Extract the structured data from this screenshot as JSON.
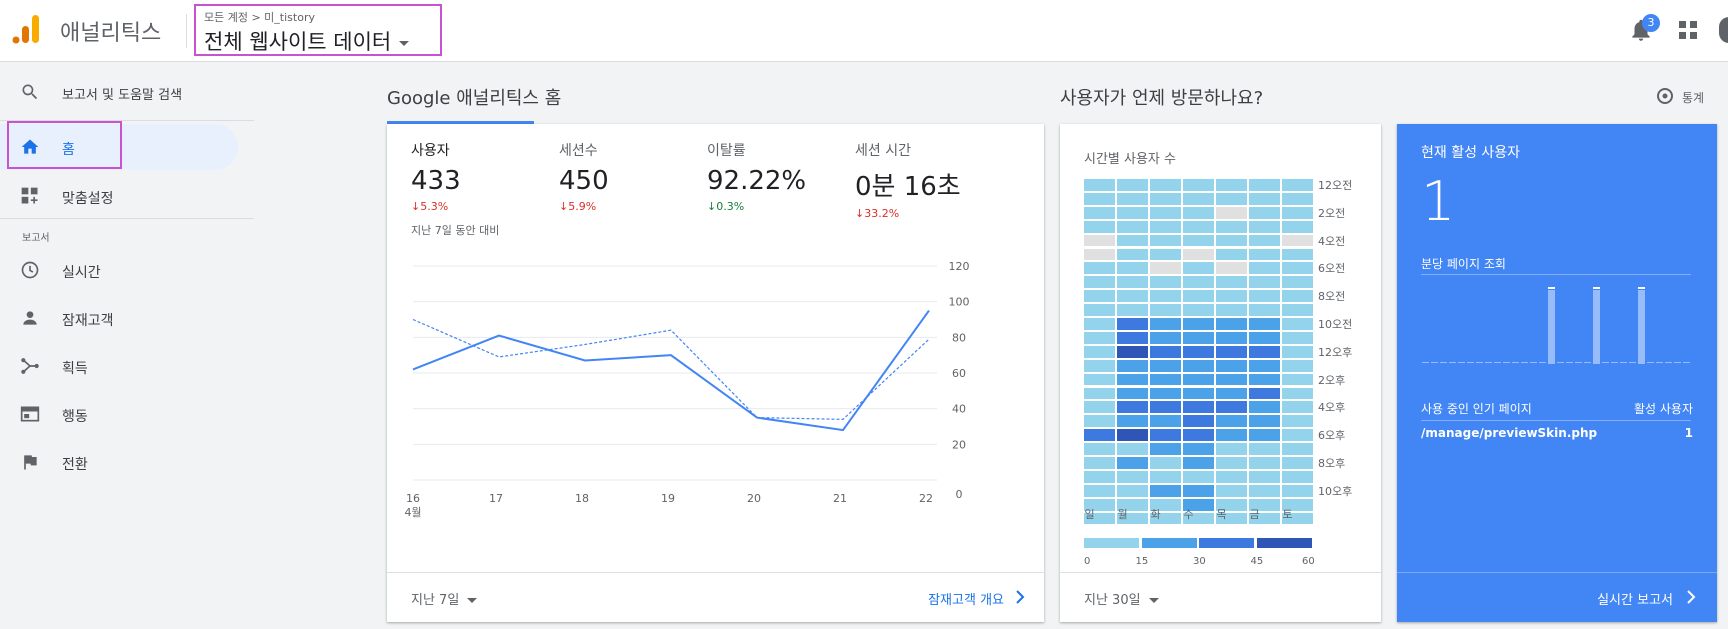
{
  "header": {
    "app_title": "애널리틱스",
    "breadcrumb": "모든 계정 > 미_tistory",
    "view_name": "전체 웹사이트 데이터",
    "notification_count": "3"
  },
  "sidebar": {
    "search_label": "보고서 및 도움말 검색",
    "items": [
      {
        "label": "홈"
      },
      {
        "label": "맞춤설정"
      }
    ],
    "section_label": "보고서",
    "reports": [
      {
        "label": "실시간"
      },
      {
        "label": "잠재고객"
      },
      {
        "label": "획득"
      },
      {
        "label": "행동"
      },
      {
        "label": "전환"
      }
    ]
  },
  "home": {
    "title": "Google 애널리틱스 홈",
    "metrics": [
      {
        "label": "사용자",
        "value": "433",
        "delta": "5.3%",
        "direction": "down"
      },
      {
        "label": "세션수",
        "value": "450",
        "delta": "5.9%",
        "direction": "down"
      },
      {
        "label": "이탈률",
        "value": "92.22%",
        "delta": "0.3%",
        "direction": "up"
      },
      {
        "label": "세션 시간",
        "value": "0분 16초",
        "delta": "33.2%",
        "direction": "down"
      }
    ],
    "compare_note": "지난 7일 동안 대비",
    "date_range": "지난 7일",
    "footer_link": "잠재고객 개요"
  },
  "chart_data": {
    "type": "line",
    "x": [
      "16",
      "17",
      "18",
      "19",
      "20",
      "21",
      "22"
    ],
    "x_sublabel": "4월",
    "series": [
      {
        "values": [
          62,
          81,
          67,
          70,
          35,
          28,
          95
        ],
        "style": "solid"
      },
      {
        "values": [
          90,
          69,
          76,
          84,
          35,
          34,
          79
        ],
        "style": "dashed"
      }
    ],
    "y_ticks": [
      "120",
      "100",
      "80",
      "60",
      "40",
      "20",
      "0"
    ],
    "ylim": [
      0,
      120
    ],
    "grid": true
  },
  "heatmap": {
    "section_title": "사용자가 언제 방문하나요?",
    "stats_label": "통계",
    "title": "시간별 사용자 수",
    "days": [
      "일",
      "월",
      "화",
      "수",
      "목",
      "금",
      "토"
    ],
    "hour_labels": [
      "12오전",
      "2오전",
      "4오전",
      "6오전",
      "8오전",
      "10오전",
      "12오후",
      "2오후",
      "4오후",
      "6오후",
      "8오후",
      "10오후"
    ],
    "levels": [
      [
        1,
        1,
        1,
        1,
        1,
        1,
        1
      ],
      [
        1,
        1,
        1,
        1,
        1,
        1,
        1
      ],
      [
        1,
        1,
        1,
        1,
        0,
        1,
        1
      ],
      [
        1,
        1,
        1,
        1,
        1,
        1,
        1
      ],
      [
        0,
        1,
        1,
        1,
        1,
        1,
        0
      ],
      [
        0,
        1,
        1,
        0,
        1,
        1,
        1
      ],
      [
        1,
        1,
        0,
        1,
        0,
        1,
        1
      ],
      [
        1,
        1,
        1,
        1,
        1,
        1,
        1
      ],
      [
        1,
        1,
        1,
        1,
        1,
        1,
        1
      ],
      [
        1,
        1,
        1,
        1,
        1,
        1,
        1
      ],
      [
        1,
        3,
        2,
        2,
        2,
        2,
        1
      ],
      [
        1,
        3,
        2,
        2,
        2,
        2,
        1
      ],
      [
        1,
        4,
        3,
        3,
        3,
        3,
        1
      ],
      [
        1,
        2,
        2,
        2,
        2,
        2,
        1
      ],
      [
        1,
        2,
        2,
        2,
        2,
        2,
        1
      ],
      [
        1,
        2,
        2,
        2,
        2,
        3,
        1
      ],
      [
        1,
        3,
        3,
        3,
        3,
        2,
        1
      ],
      [
        1,
        2,
        2,
        3,
        2,
        2,
        1
      ],
      [
        3,
        4,
        3,
        3,
        2,
        2,
        1
      ],
      [
        1,
        1,
        2,
        2,
        1,
        1,
        1
      ],
      [
        1,
        2,
        1,
        2,
        1,
        1,
        1
      ],
      [
        1,
        1,
        1,
        1,
        1,
        1,
        1
      ],
      [
        1,
        1,
        2,
        2,
        1,
        1,
        1
      ],
      [
        1,
        1,
        1,
        2,
        1,
        1,
        1
      ],
      [
        1,
        1,
        1,
        1,
        1,
        1,
        1
      ]
    ],
    "colors": {
      "0": "#e0e0e0",
      "1": "#94d3ec",
      "2": "#4ba2e8",
      "3": "#3d79df",
      "4": "#2f55b6"
    },
    "legend_ticks": [
      "0",
      "15",
      "30",
      "45",
      "60"
    ],
    "legend_colors": [
      "#94d3ec",
      "#4ba2e8",
      "#3d79df",
      "#2f55b6"
    ],
    "date_range": "지난 30일"
  },
  "realtime": {
    "title": "현재 활성 사용자",
    "value": "1",
    "pageviews_label": "분당 페이지 조회",
    "bars": [
      0,
      0,
      0,
      0,
      0,
      0,
      0,
      0,
      0,
      0,
      0,
      0,
      0,
      0,
      1,
      0,
      0,
      0,
      0,
      1,
      0,
      0,
      0,
      0,
      1,
      0,
      0,
      0,
      0,
      0
    ],
    "col_page": "사용 중인 인기 페이지",
    "col_users": "활성 사용자",
    "rows": [
      {
        "page": "/manage/previewSkin.php",
        "users": "1"
      }
    ],
    "footer_link": "실시간 보고서"
  },
  "colors": {
    "accent": "#4285f4",
    "link": "#1a73e8",
    "down": "#d93025",
    "up": "#188038",
    "highlight_box": "#c653d0"
  }
}
